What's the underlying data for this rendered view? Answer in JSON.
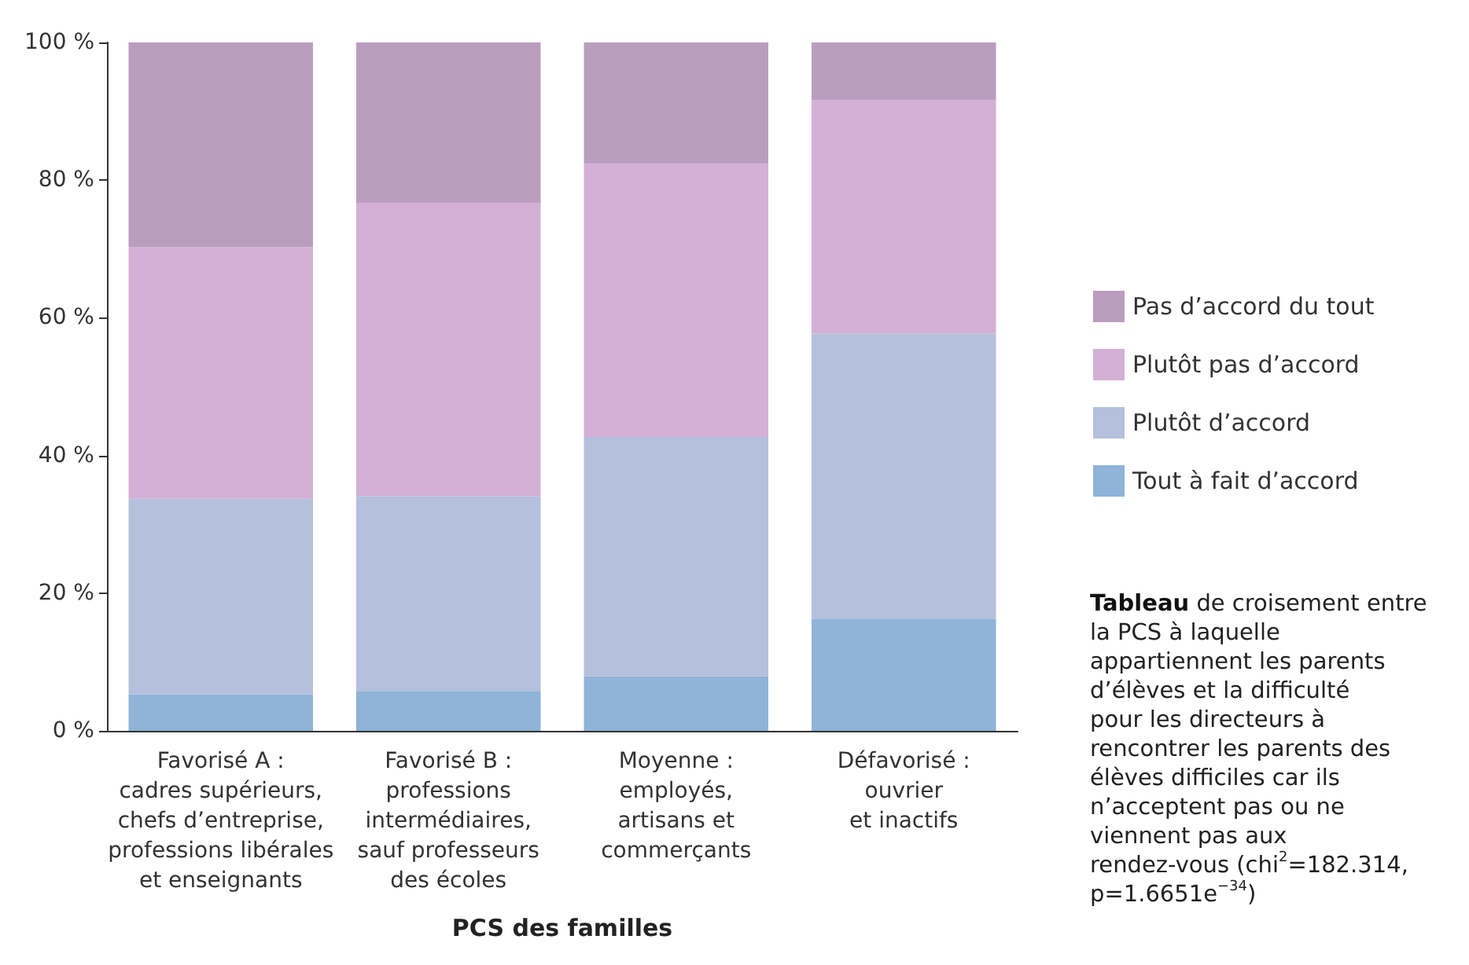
{
  "chart_data": {
    "type": "bar",
    "stacked": true,
    "xlabel": "PCS des familles",
    "categories": [
      "Favorisé A :\ncadres supérieurs,\nchefs d’entreprise,\nprofessions libérales\net enseignants",
      "Favorisé B :\nprofessions\nintermédiaires,\nsauf professeurs\ndes écoles",
      "Moyenne :\nemployés,\nartisans et\ncommerçants",
      "Défavorisé :\nouvrier\net inactifs"
    ],
    "series": [
      {
        "name": "Tout à fait d’accord",
        "color": "#8fb3d9",
        "values": [
          5.3,
          5.7,
          7.9,
          16.3
        ]
      },
      {
        "name": "Plutôt d’accord",
        "color": "#b4c0dc",
        "values": [
          28.4,
          28.4,
          34.8,
          41.4
        ]
      },
      {
        "name": "Plutôt pas d’accord",
        "color": "#d4afd6",
        "values": [
          36.6,
          42.6,
          39.7,
          33.9
        ]
      },
      {
        "name": "Pas d’accord du tout",
        "color": "#bb9dbf",
        "values": [
          29.7,
          23.3,
          17.6,
          8.4
        ]
      }
    ],
    "ylim": [
      0,
      100
    ],
    "yticks": [
      {
        "value": 0,
        "label": "0 %"
      },
      {
        "value": 20,
        "label": "20 %"
      },
      {
        "value": 40,
        "label": "40 %"
      },
      {
        "value": 60,
        "label": "60 %"
      },
      {
        "value": 80,
        "label": "80 %"
      },
      {
        "value": 100,
        "label": "100 %"
      }
    ],
    "grid": false,
    "legend": "right",
    "annotations": [
      "Tableau de croisement entre la PCS à laquelle appartiennent les parents d’élèves et la difficulté pour les directeurs à rencontrer les parents des élèves difficiles car ils n’acceptent pas ou ne viennent pas aux rendez-vous (chi$^{2}$=182.314, p=1.6651e$^{−34}$)"
    ]
  }
}
